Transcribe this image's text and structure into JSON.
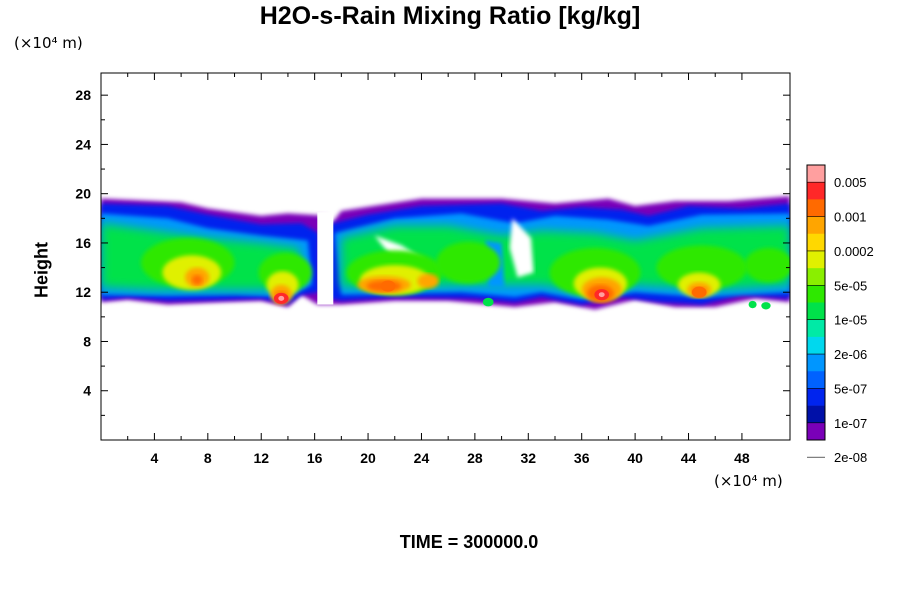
{
  "chart_data": {
    "type": "heatmap",
    "title": "H2O-s-Rain Mixing Ratio [kg/kg]",
    "xlabel": "",
    "ylabel": "Height",
    "x_unit": "(×10⁴ m)",
    "y_unit": "(×10⁴ m)",
    "xlim": [
      0,
      51.6
    ],
    "ylim": [
      0,
      29.8
    ],
    "x_ticks": [
      4,
      8,
      12,
      16,
      20,
      24,
      28,
      32,
      36,
      40,
      44,
      48
    ],
    "y_ticks": [
      4,
      8,
      12,
      16,
      20,
      24,
      28
    ],
    "colorbar": {
      "labels": [
        "0.005",
        "0.001",
        "0.0002",
        "5e-05",
        "1e-05",
        "2e-06",
        "5e-07",
        "1e-07",
        "2e-08"
      ],
      "colors": [
        "#ff9f9f",
        "#ff2828",
        "#ff6a00",
        "#ffa500",
        "#ffd800",
        "#e0f000",
        "#8aef00",
        "#2ee800",
        "#00e24a",
        "#00eaa6",
        "#00d8ee",
        "#0096ff",
        "#0062ff",
        "#0024ee",
        "#0010a8",
        "#7a00b8"
      ]
    },
    "cloud_layer": {
      "base_height": 11.0,
      "top_height": 20.0,
      "max_cores": [
        {
          "x": 13.5,
          "y": 11.5,
          "level": "0.005"
        },
        {
          "x": 21.5,
          "y": 12.5,
          "level": "0.001"
        },
        {
          "x": 37.5,
          "y": 11.8,
          "level": "0.005"
        },
        {
          "x": 44.8,
          "y": 12.0,
          "level": "0.001"
        }
      ]
    },
    "time_label": "TIME = 300000.0",
    "grid": false
  }
}
